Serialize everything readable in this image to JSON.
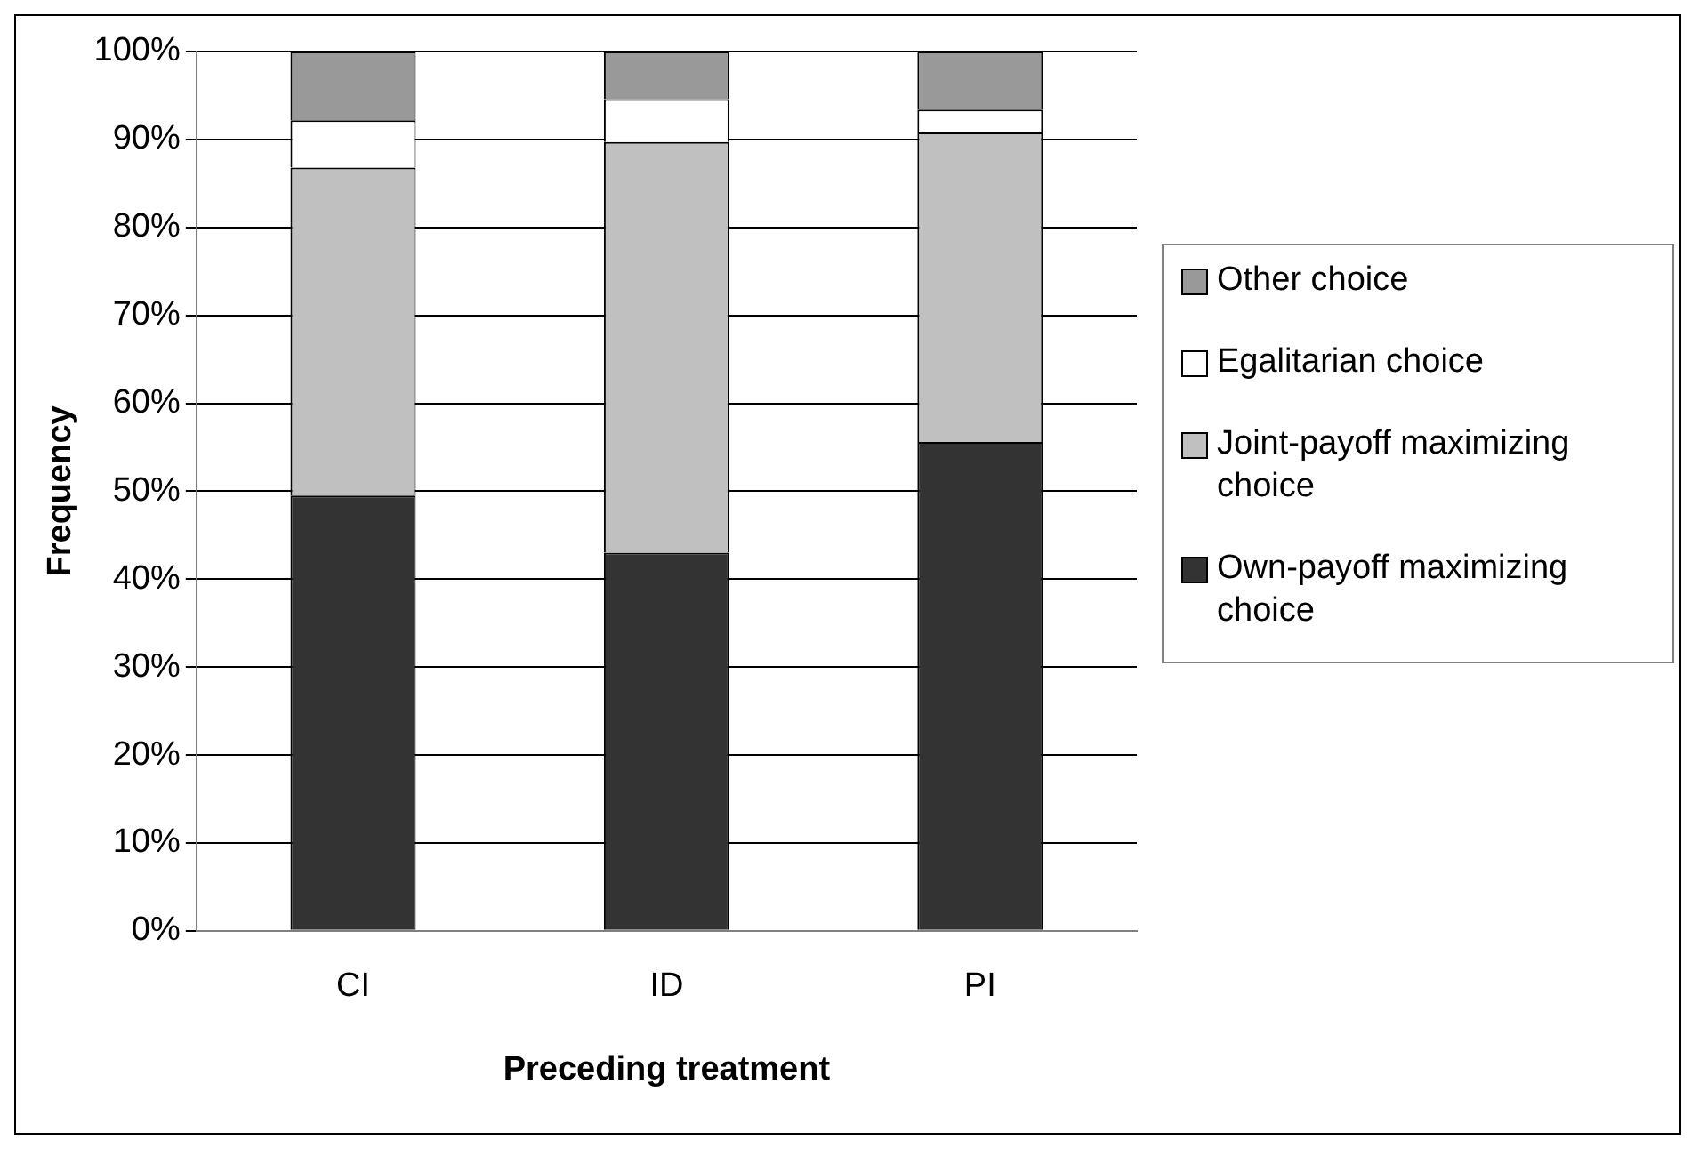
{
  "chart_data": {
    "type": "bar",
    "stacked": true,
    "xlabel": "Preceding treatment",
    "ylabel": "Frequency",
    "categories": [
      "CI",
      "ID",
      "PI"
    ],
    "series": [
      {
        "name": "Own-payoff maximizing choice",
        "color": "#333333",
        "values": [
          49.5,
          43.0,
          55.6
        ]
      },
      {
        "name": "Joint-payoff maximizing choice",
        "color": "#c0c0c0",
        "values": [
          37.3,
          46.7,
          35.2
        ]
      },
      {
        "name": "Egalitarian choice",
        "color": "#ffffff",
        "values": [
          5.4,
          4.9,
          2.6
        ]
      },
      {
        "name": "Other choice",
        "color": "#999999",
        "values": [
          7.8,
          5.4,
          6.6
        ]
      }
    ],
    "ylim": [
      0,
      100
    ],
    "yticks": [
      {
        "value": 0,
        "label": "0%"
      },
      {
        "value": 10,
        "label": "10%"
      },
      {
        "value": 20,
        "label": "20%"
      },
      {
        "value": 30,
        "label": "30%"
      },
      {
        "value": 40,
        "label": "40%"
      },
      {
        "value": 50,
        "label": "50%"
      },
      {
        "value": 60,
        "label": "60%"
      },
      {
        "value": 70,
        "label": "70%"
      },
      {
        "value": 80,
        "label": "80%"
      },
      {
        "value": 90,
        "label": "90%"
      },
      {
        "value": 100,
        "label": "100%"
      }
    ],
    "grid": "y",
    "legend": "right"
  }
}
